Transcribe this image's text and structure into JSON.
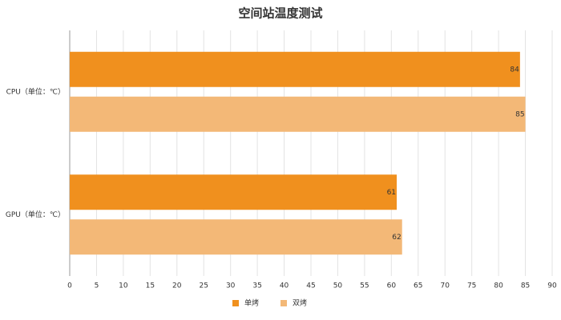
{
  "chart_data": {
    "type": "hbar",
    "title": "空间站温度测试",
    "categories": [
      "CPU（单位：℃）",
      "GPU（单位：℃）"
    ],
    "series": [
      {
        "name": "单烤",
        "color": "#f0901e",
        "values": [
          84,
          61
        ]
      },
      {
        "name": "双烤",
        "color": "#f3b877",
        "values": [
          85,
          62
        ]
      }
    ],
    "xlim": [
      0,
      90
    ],
    "xticks": [
      0,
      5,
      10,
      15,
      20,
      25,
      30,
      35,
      40,
      45,
      50,
      55,
      60,
      65,
      70,
      75,
      80,
      85,
      90
    ],
    "grid": true,
    "legend": "bottom"
  }
}
